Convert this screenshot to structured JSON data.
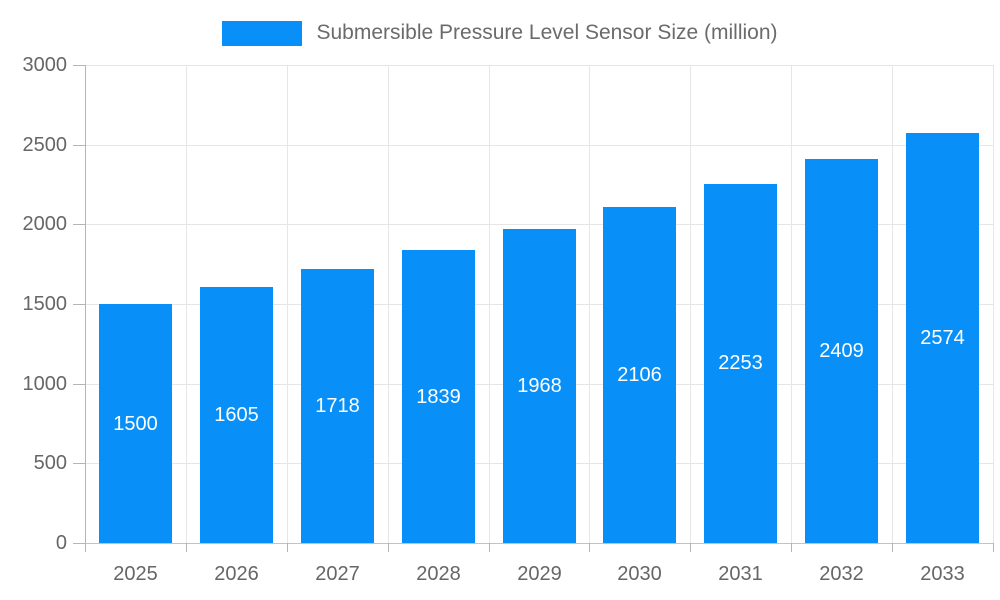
{
  "legend": {
    "label": "Submersible Pressure Level Sensor Size (million)"
  },
  "colors": {
    "bar": "#0890f8",
    "grid": "#e6e6e6",
    "axis": "#b5b5b5",
    "tick_label": "#666666",
    "bar_label": "#ffffff"
  },
  "chart_data": {
    "type": "bar",
    "title": "Submersible Pressure Level Sensor Size (million)",
    "categories": [
      "2025",
      "2026",
      "2027",
      "2028",
      "2029",
      "2030",
      "2031",
      "2032",
      "2033"
    ],
    "values": [
      1500,
      1605,
      1718,
      1839,
      1968,
      2106,
      2253,
      2409,
      2574
    ],
    "xlabel": "",
    "ylabel": "",
    "ylim": [
      0,
      3000
    ],
    "ytick_step": 500,
    "yticks": [
      0,
      500,
      1000,
      1500,
      2000,
      2500,
      3000
    ],
    "grid": true,
    "legend_position": "top",
    "value_labels": "inside-center"
  }
}
